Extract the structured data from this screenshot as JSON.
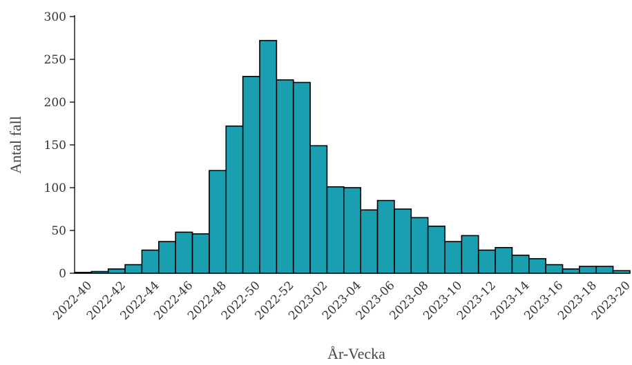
{
  "chart_data": {
    "type": "bar",
    "xlabel": "År-Vecka",
    "ylabel": "Antal fall",
    "ylim": [
      0,
      300
    ],
    "yticks": [
      "0",
      "50",
      "100",
      "150",
      "200",
      "250",
      "300"
    ],
    "categories": [
      "2022-40",
      "2022-41",
      "2022-42",
      "2022-43",
      "2022-44",
      "2022-45",
      "2022-46",
      "2022-47",
      "2022-48",
      "2022-49",
      "2022-50",
      "2022-51",
      "2022-52",
      "2023-01",
      "2023-02",
      "2023-03",
      "2023-04",
      "2023-05",
      "2023-06",
      "2023-07",
      "2023-08",
      "2023-09",
      "2023-10",
      "2023-11",
      "2023-12",
      "2023-13",
      "2023-14",
      "2023-15",
      "2023-16",
      "2023-17",
      "2023-18",
      "2023-19",
      "2023-20"
    ],
    "xticks": [
      "2022-40",
      "2022-42",
      "2022-44",
      "2022-46",
      "2022-48",
      "2022-50",
      "2022-52",
      "2023-02",
      "2023-04",
      "2023-06",
      "2023-08",
      "2023-10",
      "2023-12",
      "2023-14",
      "2023-16",
      "2023-18",
      "2023-20"
    ],
    "values": [
      1,
      2,
      5,
      10,
      27,
      37,
      48,
      46,
      120,
      172,
      230,
      272,
      226,
      223,
      149,
      101,
      100,
      74,
      85,
      75,
      65,
      55,
      37,
      44,
      27,
      30,
      21,
      17,
      10,
      5,
      8,
      8,
      3
    ],
    "bar_color": "#1a9fb0",
    "edge_color": "#000000",
    "grid": false,
    "legend": "none"
  }
}
